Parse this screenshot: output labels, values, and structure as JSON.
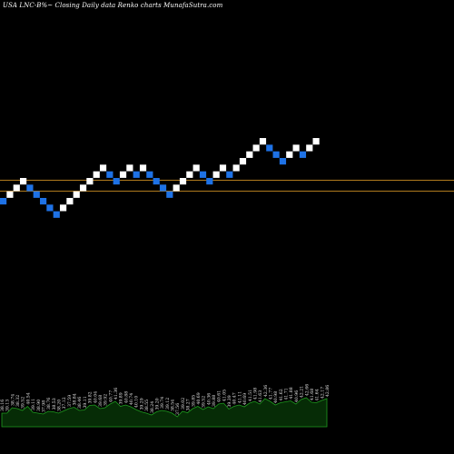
{
  "header": {
    "title": "USA LNC-B%~  Closing Daily data  Renko  charts MunafaSutra.com"
  },
  "chart_data": {
    "type": "renko",
    "colors": {
      "up_brick": "#ffffff",
      "down_brick": "#1e72e6",
      "reference_line": "#b07a1e",
      "volume_area": "#062c06",
      "volume_edge": "#1f9a1f"
    },
    "bricks": [
      {
        "dir": "down",
        "level": 0
      },
      {
        "dir": "up",
        "level": 1
      },
      {
        "dir": "up",
        "level": 2
      },
      {
        "dir": "up",
        "level": 3
      },
      {
        "dir": "down",
        "level": 2
      },
      {
        "dir": "down",
        "level": 1
      },
      {
        "dir": "down",
        "level": 0
      },
      {
        "dir": "down",
        "level": -1
      },
      {
        "dir": "down",
        "level": -2
      },
      {
        "dir": "up",
        "level": -1
      },
      {
        "dir": "up",
        "level": 0
      },
      {
        "dir": "up",
        "level": 1
      },
      {
        "dir": "up",
        "level": 2
      },
      {
        "dir": "up",
        "level": 3
      },
      {
        "dir": "up",
        "level": 4
      },
      {
        "dir": "up",
        "level": 5
      },
      {
        "dir": "down",
        "level": 4
      },
      {
        "dir": "down",
        "level": 3
      },
      {
        "dir": "up",
        "level": 4
      },
      {
        "dir": "up",
        "level": 5
      },
      {
        "dir": "down",
        "level": 4
      },
      {
        "dir": "up",
        "level": 5
      },
      {
        "dir": "down",
        "level": 4
      },
      {
        "dir": "down",
        "level": 3
      },
      {
        "dir": "down",
        "level": 2
      },
      {
        "dir": "down",
        "level": 1
      },
      {
        "dir": "up",
        "level": 2
      },
      {
        "dir": "up",
        "level": 3
      },
      {
        "dir": "up",
        "level": 4
      },
      {
        "dir": "up",
        "level": 5
      },
      {
        "dir": "down",
        "level": 4
      },
      {
        "dir": "down",
        "level": 3
      },
      {
        "dir": "up",
        "level": 4
      },
      {
        "dir": "up",
        "level": 5
      },
      {
        "dir": "down",
        "level": 4
      },
      {
        "dir": "up",
        "level": 5
      },
      {
        "dir": "up",
        "level": 6
      },
      {
        "dir": "up",
        "level": 7
      },
      {
        "dir": "up",
        "level": 8
      },
      {
        "dir": "up",
        "level": 9
      },
      {
        "dir": "down",
        "level": 8
      },
      {
        "dir": "down",
        "level": 7
      },
      {
        "dir": "down",
        "level": 6
      },
      {
        "dir": "up",
        "level": 7
      },
      {
        "dir": "up",
        "level": 8
      },
      {
        "dir": "down",
        "level": 7
      },
      {
        "dir": "up",
        "level": 8
      },
      {
        "dir": "up",
        "level": 9
      }
    ],
    "volume_labels": [
      "38.16",
      "39.13",
      "38.74",
      "38.32",
      "39.52",
      "40.54",
      "39.11",
      "38.90",
      "37.98",
      "38.76",
      "38.53",
      "38.20",
      "37.12",
      "37.59",
      "38.84",
      "38.46",
      "39.11",
      "39.82",
      "40.04",
      "39.68",
      "39.92",
      "40.77",
      "41.36",
      "39.89",
      "40.88",
      "40.74",
      "40.10",
      "39.29",
      "38.55",
      "38.24",
      "39.20",
      "39.74",
      "39.12",
      "38.54",
      "37.56",
      "39.02",
      "38.27",
      "39.85",
      "40.69",
      "39.52",
      "40.36",
      "39.88",
      "40.61",
      "41.05",
      "39.39",
      "40.47",
      "41.11",
      "40.69",
      "41.51",
      "41.98",
      "41.63",
      "42.36",
      "41.77",
      "40.98",
      "41.62",
      "41.71",
      "41.88",
      "40.96",
      "42.21",
      "42.66",
      "41.68",
      "41.64",
      "42.17",
      "42.86"
    ],
    "volume_levels": [
      0.3,
      0.3,
      0.42,
      0.4,
      0.36,
      0.45,
      0.32,
      0.3,
      0.28,
      0.34,
      0.33,
      0.3,
      0.35,
      0.4,
      0.43,
      0.36,
      0.37,
      0.47,
      0.48,
      0.4,
      0.42,
      0.5,
      0.56,
      0.45,
      0.48,
      0.44,
      0.38,
      0.33,
      0.3,
      0.26,
      0.33,
      0.36,
      0.34,
      0.3,
      0.22,
      0.34,
      0.31,
      0.4,
      0.45,
      0.38,
      0.44,
      0.4,
      0.5,
      0.52,
      0.39,
      0.45,
      0.48,
      0.44,
      0.52,
      0.56,
      0.5,
      0.62,
      0.56,
      0.48,
      0.53,
      0.55,
      0.57,
      0.5,
      0.6,
      0.64,
      0.54,
      0.53,
      0.58,
      0.62
    ]
  }
}
